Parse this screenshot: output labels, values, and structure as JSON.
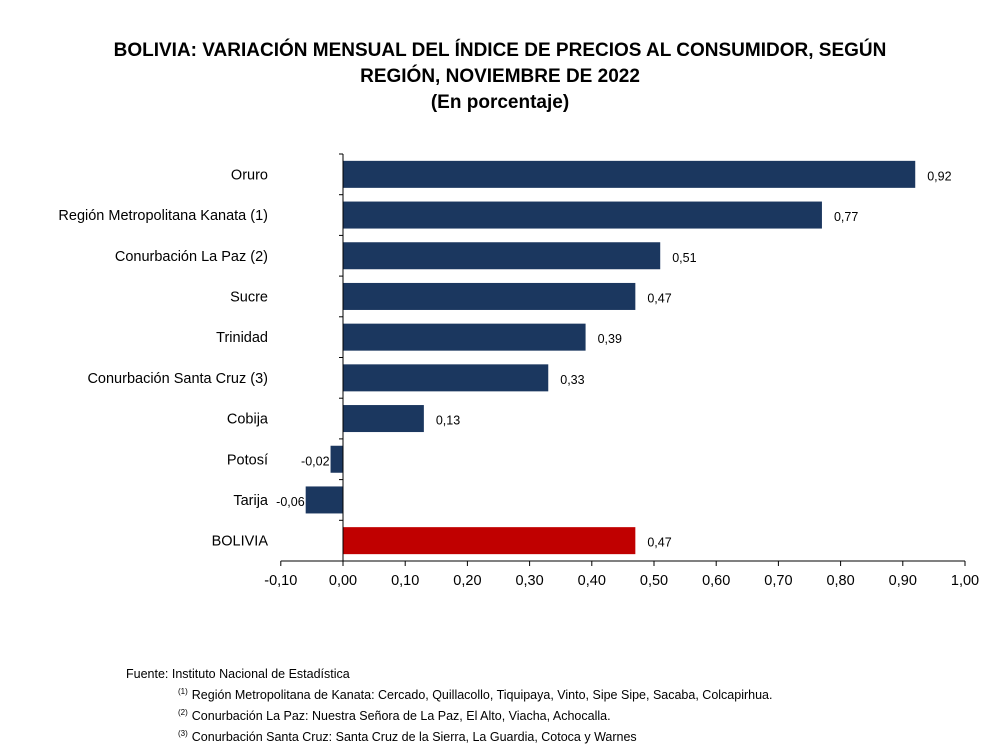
{
  "chart_data": {
    "type": "bar",
    "orientation": "horizontal",
    "title": "BOLIVIA: VARIACIÓN MENSUAL DEL ÍNDICE DE PRECIOS AL CONSUMIDOR, SEGÚN",
    "title_line2": "REGIÓN, NOVIEMBRE DE 2022",
    "subtitle": "(En porcentaje)",
    "categories": [
      "Oruro",
      "Región Metropolitana Kanata (1)",
      "Conurbación La Paz (2)",
      "Sucre",
      "Trinidad",
      "Conurbación Santa Cruz (3)",
      "Cobija",
      "Potosí",
      "Tarija",
      "BOLIVIA"
    ],
    "values": [
      0.92,
      0.77,
      0.51,
      0.47,
      0.39,
      0.33,
      0.13,
      -0.02,
      -0.06,
      0.47
    ],
    "value_labels": [
      "0,92",
      "0,77",
      "0,51",
      "0,47",
      "0,39",
      "0,33",
      "0,13",
      "-0,02",
      "-0,06",
      "0,47"
    ],
    "xlim": [
      -0.1,
      1.0
    ],
    "xticks": [
      -0.1,
      0.0,
      0.1,
      0.2,
      0.3,
      0.4,
      0.5,
      0.6,
      0.7,
      0.8,
      0.9,
      1.0
    ],
    "xtick_labels": [
      "-0,10",
      "0,00",
      "0,10",
      "0,20",
      "0,30",
      "0,40",
      "0,50",
      "0,60",
      "0,70",
      "0,80",
      "0,90",
      "1,00"
    ],
    "xlabel": "",
    "ylabel": "",
    "grid": false,
    "colors": {
      "default": "#1b375f",
      "highlight": "#c00000",
      "highlight_category": "BOLIVIA"
    }
  },
  "footer": {
    "source": "Fuente: Instituto Nacional de Estadística",
    "notes": [
      {
        "marker": "(1)",
        "text": "Región Metropolitana de Kanata: Cercado, Quillacollo, Tiquipaya, Vinto, Sipe Sipe, Sacaba, Colcapirhua."
      },
      {
        "marker": "(2)",
        "text": "Conurbación La Paz: Nuestra Señora de La Paz, El Alto, Viacha, Achocalla."
      },
      {
        "marker": "(3)",
        "text": "Conurbación Santa Cruz: Santa Cruz de la Sierra, La Guardia, Cotoca y Warnes"
      }
    ]
  }
}
